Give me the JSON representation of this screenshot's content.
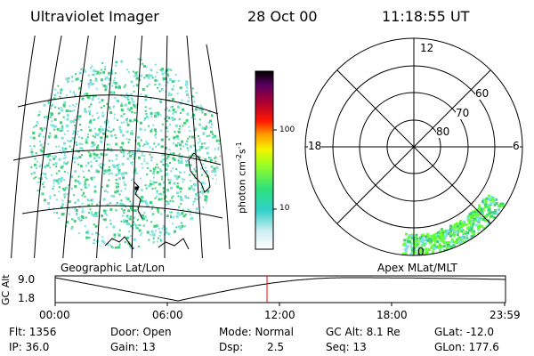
{
  "header": {
    "instrument": "Ultraviolet Imager",
    "date": "28 Oct 00",
    "time": "11:18:55 UT"
  },
  "geo_panel": {
    "label": "Geographic Lat/Lon"
  },
  "polar_panel": {
    "label": "Apex MLat/MLT",
    "mlt_labels": [
      "12",
      "18",
      "6",
      "0"
    ],
    "lat_labels": [
      "60",
      "70",
      "80"
    ]
  },
  "colorbar": {
    "unit_label": "photon cm",
    "unit_exp1": "-2",
    "unit_mid": "s",
    "unit_exp2": "-1",
    "ticks": [
      "100",
      "10"
    ]
  },
  "altitude_plot": {
    "axis_label": "GC Alt",
    "y_ticks": [
      "9.0",
      "1.8"
    ],
    "x_ticks": [
      "00:00",
      "06:00",
      "12:00",
      "18:00",
      "23:59"
    ]
  },
  "footer": {
    "flt": "Flt: 1356",
    "ip": "IP: 36.0",
    "door": "Door: Open",
    "gain": "Gain: 13",
    "mode": "Mode: Normal",
    "dsp_label": "Dsp:",
    "dsp_value": "2.5",
    "gc_alt": "GC Alt: 8.1 Re",
    "seq": "Seq: 13",
    "glat": "GLat: -12.0",
    "glon": "GLon: 177.6"
  },
  "colors": {
    "speckle_cyan": "#7fe0e0",
    "speckle_green": "#3fd07a",
    "aurora_green": "#66ff33",
    "marker_red": "#ff0000"
  }
}
